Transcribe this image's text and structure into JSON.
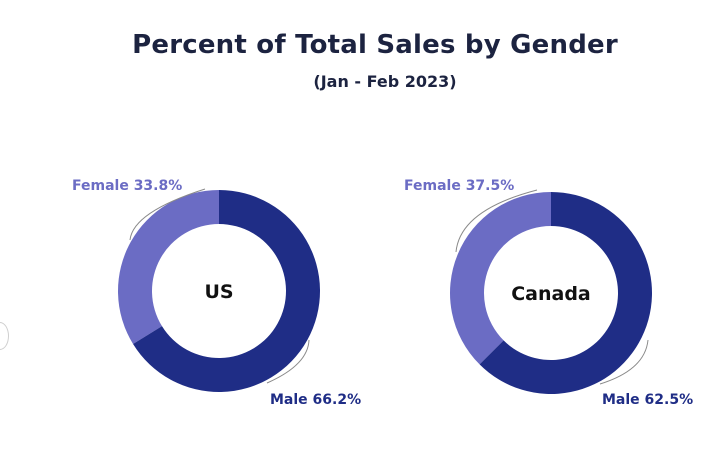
{
  "colors": {
    "female": "#6b6cc4",
    "male": "#1f2d86",
    "title_text": "#1c2340"
  },
  "chart_data": {
    "type": "pie",
    "title": "Percent of Total Sales by Gender",
    "subtitle": "(Jan - Feb 2023)",
    "charts": [
      {
        "label": "US",
        "slices": [
          {
            "name": "Female",
            "value": 33.8,
            "text": "Female 33.8%"
          },
          {
            "name": "Male",
            "value": 66.2,
            "text": "Male 66.2%"
          }
        ]
      },
      {
        "label": "Canada",
        "slices": [
          {
            "name": "Female",
            "value": 37.5,
            "text": "Female 37.5%"
          },
          {
            "name": "Male",
            "value": 62.5,
            "text": "Male 62.5%"
          }
        ]
      }
    ]
  }
}
